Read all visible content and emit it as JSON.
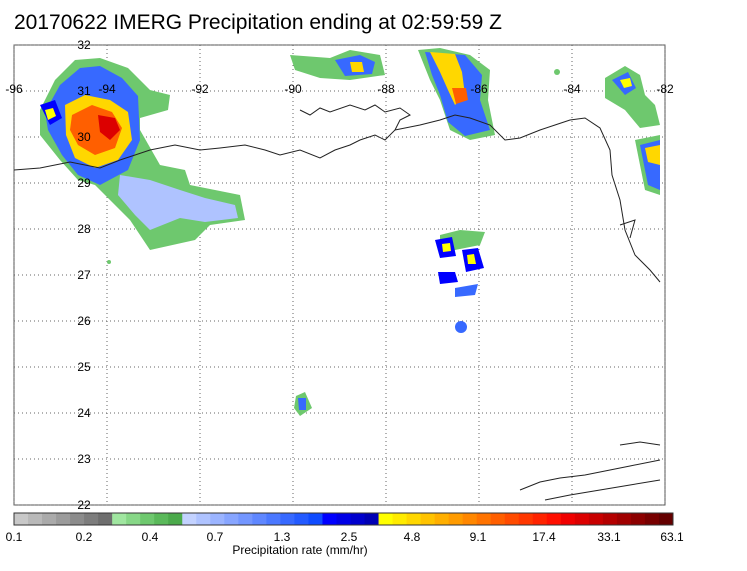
{
  "title": "20170622 IMERG Precipitation ending at 02:59:59 Z",
  "map": {
    "lon_range": [
      -96,
      -82
    ],
    "lat_range": [
      22,
      32
    ],
    "lon_ticks": [
      "-96",
      "-94",
      "-92",
      "-90",
      "-88",
      "-86",
      "-84",
      "-82"
    ],
    "lat_ticks": [
      "32",
      "31",
      "30",
      "29",
      "28",
      "27",
      "26",
      "25",
      "24",
      "23",
      "22"
    ],
    "grid": "dotted"
  },
  "colorbar": {
    "label": "Precipitation rate (mm/hr)",
    "tick_labels": [
      "0.1",
      "0.2",
      "0.4",
      "0.7",
      "1.3",
      "2.5",
      "4.8",
      "9.1",
      "17.4",
      "33.1",
      "63.1"
    ],
    "colors": [
      "#c8c8c8",
      "#b9b9b9",
      "#aaaaaa",
      "#9b9b9b",
      "#8c8c8c",
      "#7d7d7d",
      "#6e6e6e",
      "#a0e6a0",
      "#87d787",
      "#6ec86e",
      "#5ab95a",
      "#4baa4b",
      "#c3d2ff",
      "#afc3ff",
      "#9bb4ff",
      "#87a5ff",
      "#7396ff",
      "#5f87ff",
      "#4b78ff",
      "#3769ff",
      "#235aff",
      "#0f4bff",
      "#0000ff",
      "#0000e6",
      "#0000cd",
      "#0000b4",
      "#ffff00",
      "#ffeb00",
      "#ffd700",
      "#ffc300",
      "#ffaf00",
      "#ff9b00",
      "#ff8700",
      "#ff7300",
      "#ff5f00",
      "#ff4b00",
      "#ff3700",
      "#ff2300",
      "#ff0f00",
      "#f00000",
      "#dc0000",
      "#c80000",
      "#b40000",
      "#a00000",
      "#8c0000",
      "#780000",
      "#640000"
    ]
  }
}
